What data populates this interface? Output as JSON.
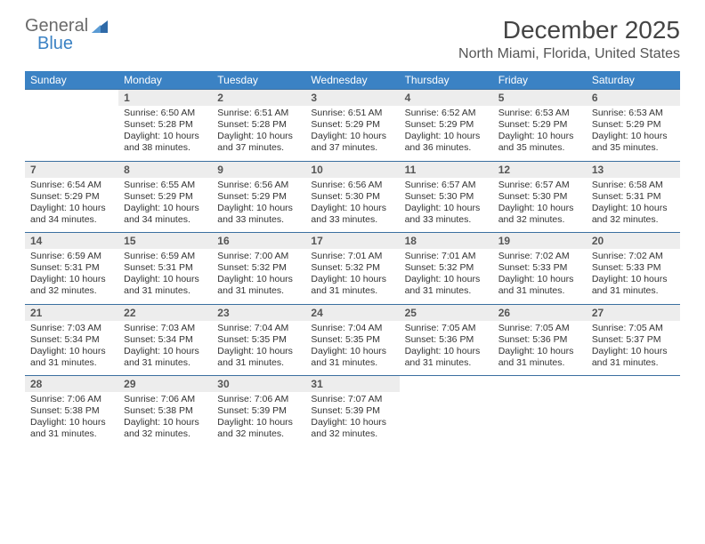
{
  "logo": {
    "part1": "General",
    "part2": "Blue"
  },
  "title": "December 2025",
  "location": "North Miami, Florida, United States",
  "colors": {
    "header_bg": "#3b82c4",
    "header_text": "#ffffff",
    "daynum_bg": "#ededed",
    "rule": "#3b6fa0",
    "text": "#333333"
  },
  "daysOfWeek": [
    "Sunday",
    "Monday",
    "Tuesday",
    "Wednesday",
    "Thursday",
    "Friday",
    "Saturday"
  ],
  "weeks": [
    [
      {
        "n": "",
        "sunrise": "",
        "sunset": "",
        "daylight": ""
      },
      {
        "n": "1",
        "sunrise": "Sunrise: 6:50 AM",
        "sunset": "Sunset: 5:28 PM",
        "daylight": "Daylight: 10 hours and 38 minutes."
      },
      {
        "n": "2",
        "sunrise": "Sunrise: 6:51 AM",
        "sunset": "Sunset: 5:28 PM",
        "daylight": "Daylight: 10 hours and 37 minutes."
      },
      {
        "n": "3",
        "sunrise": "Sunrise: 6:51 AM",
        "sunset": "Sunset: 5:29 PM",
        "daylight": "Daylight: 10 hours and 37 minutes."
      },
      {
        "n": "4",
        "sunrise": "Sunrise: 6:52 AM",
        "sunset": "Sunset: 5:29 PM",
        "daylight": "Daylight: 10 hours and 36 minutes."
      },
      {
        "n": "5",
        "sunrise": "Sunrise: 6:53 AM",
        "sunset": "Sunset: 5:29 PM",
        "daylight": "Daylight: 10 hours and 35 minutes."
      },
      {
        "n": "6",
        "sunrise": "Sunrise: 6:53 AM",
        "sunset": "Sunset: 5:29 PM",
        "daylight": "Daylight: 10 hours and 35 minutes."
      }
    ],
    [
      {
        "n": "7",
        "sunrise": "Sunrise: 6:54 AM",
        "sunset": "Sunset: 5:29 PM",
        "daylight": "Daylight: 10 hours and 34 minutes."
      },
      {
        "n": "8",
        "sunrise": "Sunrise: 6:55 AM",
        "sunset": "Sunset: 5:29 PM",
        "daylight": "Daylight: 10 hours and 34 minutes."
      },
      {
        "n": "9",
        "sunrise": "Sunrise: 6:56 AM",
        "sunset": "Sunset: 5:29 PM",
        "daylight": "Daylight: 10 hours and 33 minutes."
      },
      {
        "n": "10",
        "sunrise": "Sunrise: 6:56 AM",
        "sunset": "Sunset: 5:30 PM",
        "daylight": "Daylight: 10 hours and 33 minutes."
      },
      {
        "n": "11",
        "sunrise": "Sunrise: 6:57 AM",
        "sunset": "Sunset: 5:30 PM",
        "daylight": "Daylight: 10 hours and 33 minutes."
      },
      {
        "n": "12",
        "sunrise": "Sunrise: 6:57 AM",
        "sunset": "Sunset: 5:30 PM",
        "daylight": "Daylight: 10 hours and 32 minutes."
      },
      {
        "n": "13",
        "sunrise": "Sunrise: 6:58 AM",
        "sunset": "Sunset: 5:31 PM",
        "daylight": "Daylight: 10 hours and 32 minutes."
      }
    ],
    [
      {
        "n": "14",
        "sunrise": "Sunrise: 6:59 AM",
        "sunset": "Sunset: 5:31 PM",
        "daylight": "Daylight: 10 hours and 32 minutes."
      },
      {
        "n": "15",
        "sunrise": "Sunrise: 6:59 AM",
        "sunset": "Sunset: 5:31 PM",
        "daylight": "Daylight: 10 hours and 31 minutes."
      },
      {
        "n": "16",
        "sunrise": "Sunrise: 7:00 AM",
        "sunset": "Sunset: 5:32 PM",
        "daylight": "Daylight: 10 hours and 31 minutes."
      },
      {
        "n": "17",
        "sunrise": "Sunrise: 7:01 AM",
        "sunset": "Sunset: 5:32 PM",
        "daylight": "Daylight: 10 hours and 31 minutes."
      },
      {
        "n": "18",
        "sunrise": "Sunrise: 7:01 AM",
        "sunset": "Sunset: 5:32 PM",
        "daylight": "Daylight: 10 hours and 31 minutes."
      },
      {
        "n": "19",
        "sunrise": "Sunrise: 7:02 AM",
        "sunset": "Sunset: 5:33 PM",
        "daylight": "Daylight: 10 hours and 31 minutes."
      },
      {
        "n": "20",
        "sunrise": "Sunrise: 7:02 AM",
        "sunset": "Sunset: 5:33 PM",
        "daylight": "Daylight: 10 hours and 31 minutes."
      }
    ],
    [
      {
        "n": "21",
        "sunrise": "Sunrise: 7:03 AM",
        "sunset": "Sunset: 5:34 PM",
        "daylight": "Daylight: 10 hours and 31 minutes."
      },
      {
        "n": "22",
        "sunrise": "Sunrise: 7:03 AM",
        "sunset": "Sunset: 5:34 PM",
        "daylight": "Daylight: 10 hours and 31 minutes."
      },
      {
        "n": "23",
        "sunrise": "Sunrise: 7:04 AM",
        "sunset": "Sunset: 5:35 PM",
        "daylight": "Daylight: 10 hours and 31 minutes."
      },
      {
        "n": "24",
        "sunrise": "Sunrise: 7:04 AM",
        "sunset": "Sunset: 5:35 PM",
        "daylight": "Daylight: 10 hours and 31 minutes."
      },
      {
        "n": "25",
        "sunrise": "Sunrise: 7:05 AM",
        "sunset": "Sunset: 5:36 PM",
        "daylight": "Daylight: 10 hours and 31 minutes."
      },
      {
        "n": "26",
        "sunrise": "Sunrise: 7:05 AM",
        "sunset": "Sunset: 5:36 PM",
        "daylight": "Daylight: 10 hours and 31 minutes."
      },
      {
        "n": "27",
        "sunrise": "Sunrise: 7:05 AM",
        "sunset": "Sunset: 5:37 PM",
        "daylight": "Daylight: 10 hours and 31 minutes."
      }
    ],
    [
      {
        "n": "28",
        "sunrise": "Sunrise: 7:06 AM",
        "sunset": "Sunset: 5:38 PM",
        "daylight": "Daylight: 10 hours and 31 minutes."
      },
      {
        "n": "29",
        "sunrise": "Sunrise: 7:06 AM",
        "sunset": "Sunset: 5:38 PM",
        "daylight": "Daylight: 10 hours and 32 minutes."
      },
      {
        "n": "30",
        "sunrise": "Sunrise: 7:06 AM",
        "sunset": "Sunset: 5:39 PM",
        "daylight": "Daylight: 10 hours and 32 minutes."
      },
      {
        "n": "31",
        "sunrise": "Sunrise: 7:07 AM",
        "sunset": "Sunset: 5:39 PM",
        "daylight": "Daylight: 10 hours and 32 minutes."
      },
      {
        "n": "",
        "sunrise": "",
        "sunset": "",
        "daylight": ""
      },
      {
        "n": "",
        "sunrise": "",
        "sunset": "",
        "daylight": ""
      },
      {
        "n": "",
        "sunrise": "",
        "sunset": "",
        "daylight": ""
      }
    ]
  ]
}
